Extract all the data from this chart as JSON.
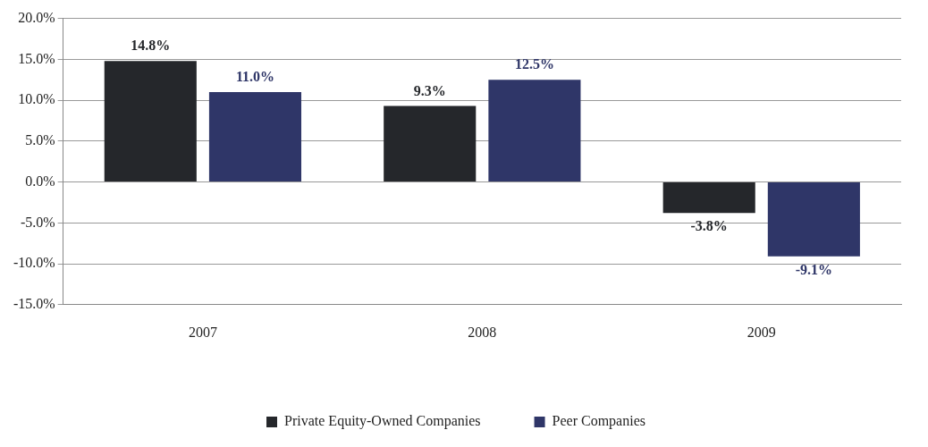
{
  "chart_data": {
    "type": "bar",
    "categories": [
      "2007",
      "2008",
      "2009"
    ],
    "series": [
      {
        "name": "Private Equity-Owned Companies",
        "color": "#25272b",
        "values": [
          14.8,
          9.3,
          -3.8
        ],
        "value_labels": [
          "14.8%",
          "9.3%",
          "-3.8%"
        ]
      },
      {
        "name": "Peer Companies",
        "color": "#2f3668",
        "values": [
          11.0,
          12.5,
          -9.1
        ],
        "value_labels": [
          "11.0%",
          "12.5%",
          "-9.1%"
        ]
      }
    ],
    "ylim": [
      -15,
      20
    ],
    "yticks": [
      {
        "value": -15,
        "label": "-15.0%"
      },
      {
        "value": -10,
        "label": "-10.0%"
      },
      {
        "value": -5,
        "label": "-5.0%"
      },
      {
        "value": 0,
        "label": "0.0%"
      },
      {
        "value": 5,
        "label": "5.0%"
      },
      {
        "value": 10,
        "label": "10.0%"
      },
      {
        "value": 15,
        "label": "15.0%"
      },
      {
        "value": 20,
        "label": "20.0%"
      }
    ],
    "grid": "y",
    "legend": "bottom"
  }
}
